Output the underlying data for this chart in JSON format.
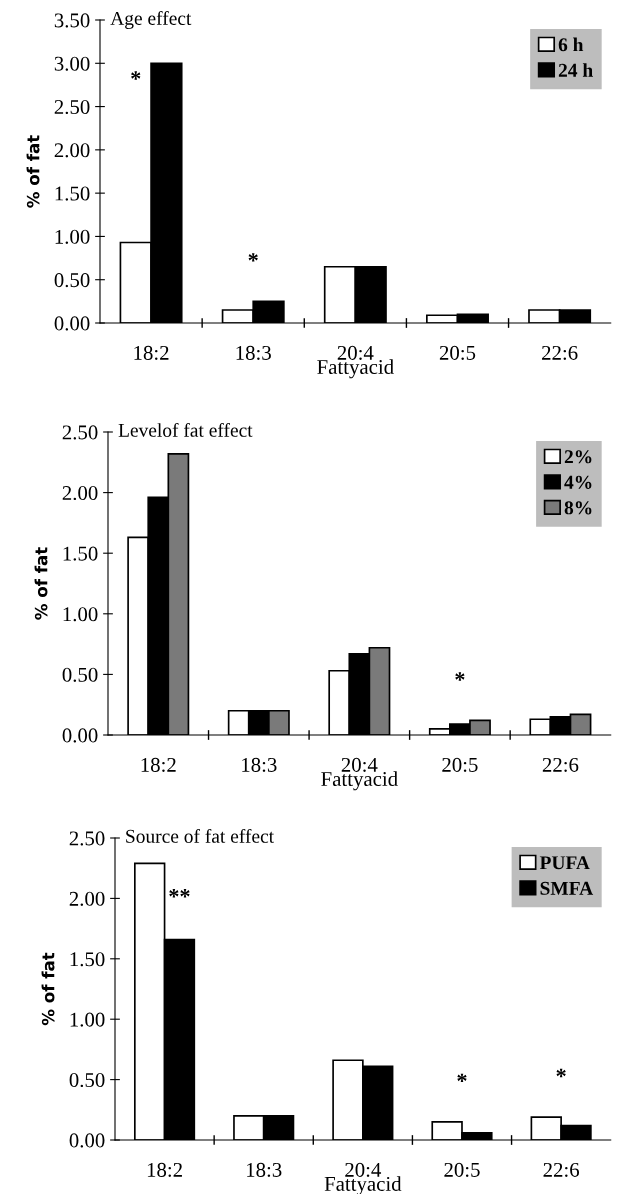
{
  "chart_data": [
    {
      "type": "bar",
      "title": "Age effect",
      "xlabel": "Fattyacid",
      "ylabel": "% of fat",
      "categories": [
        "18:2",
        "18:3",
        "20:4",
        "20:5",
        "22:6"
      ],
      "series": [
        {
          "name": "6 h",
          "color": "#ffffff",
          "values": [
            0.93,
            0.15,
            0.65,
            0.09,
            0.15
          ]
        },
        {
          "name": "24 h",
          "color": "#000000",
          "values": [
            3.0,
            0.25,
            0.65,
            0.1,
            0.15
          ]
        }
      ],
      "ylim": [
        0,
        3.5
      ],
      "yticks": [
        {
          "value": 0,
          "label": "0.00"
        },
        {
          "value": 0.5,
          "label": "0.50"
        },
        {
          "value": 1,
          "label": "1.00"
        },
        {
          "value": 1.5,
          "label": "1.50"
        },
        {
          "value": 2,
          "label": "2.00"
        },
        {
          "value": 2.5,
          "label": "2.50"
        },
        {
          "value": 3,
          "label": "3.00"
        },
        {
          "value": 3.5,
          "label": "3.50"
        }
      ],
      "annotations": [
        {
          "text": "*",
          "x": "18:2",
          "y": 2.8
        },
        {
          "text": "*",
          "x": "18:3",
          "y": 0.25
        }
      ],
      "legend": "top right",
      "grid": false
    },
    {
      "type": "bar",
      "title": "Levelof fat effect",
      "xlabel": "Fattyacid",
      "ylabel": "% of fat",
      "categories": [
        "18:2",
        "18:3",
        "20:4",
        "20:5",
        "22:6"
      ],
      "series": [
        {
          "name": "2%",
          "color": "#ffffff",
          "values": [
            1.63,
            0.2,
            0.53,
            0.05,
            0.13
          ]
        },
        {
          "name": "4%",
          "color": "#000000",
          "values": [
            1.96,
            0.2,
            0.67,
            0.09,
            0.15
          ]
        },
        {
          "name": "8%",
          "color": "#7a7a7a",
          "values": [
            2.32,
            0.2,
            0.72,
            0.12,
            0.17
          ]
        }
      ],
      "ylim": [
        0,
        2.5
      ],
      "yticks": [
        {
          "value": 0,
          "label": "0.00"
        },
        {
          "value": 0.5,
          "label": "0.50"
        },
        {
          "value": 1,
          "label": "1.00"
        },
        {
          "value": 1.5,
          "label": "1.50"
        },
        {
          "value": 2,
          "label": "2.00"
        },
        {
          "value": 2.5,
          "label": "2.50"
        }
      ],
      "annotations": [
        {
          "text": "*",
          "x": "20:5",
          "y": 0.12
        }
      ],
      "legend": "top right",
      "grid": false
    },
    {
      "type": "bar",
      "title": "Source of fat effect",
      "xlabel": "Fattyacid",
      "ylabel": "% of fat",
      "categories": [
        "18:2",
        "18:3",
        "20:4",
        "20:5",
        "22:6"
      ],
      "series": [
        {
          "name": "PUFA",
          "color": "#ffffff",
          "values": [
            2.29,
            0.2,
            0.66,
            0.15,
            0.19
          ]
        },
        {
          "name": "SMFA",
          "color": "#000000",
          "values": [
            1.66,
            0.2,
            0.61,
            0.06,
            0.12
          ]
        }
      ],
      "ylim": [
        0,
        2.5
      ],
      "yticks": [
        {
          "value": 0,
          "label": "0.00"
        },
        {
          "value": 0.5,
          "label": "0.50"
        },
        {
          "value": 1,
          "label": "1.00"
        },
        {
          "value": 1.5,
          "label": "1.50"
        },
        {
          "value": 2,
          "label": "2.00"
        },
        {
          "value": 2.5,
          "label": "2.50"
        }
      ],
      "annotations": [
        {
          "text": "**",
          "x": "18:2",
          "y": 2.0
        },
        {
          "text": "*",
          "x": "20:5",
          "y": 0.15
        },
        {
          "text": "*",
          "x": "22:6",
          "y": 0.19
        }
      ],
      "legend": "top right",
      "grid": false
    }
  ]
}
